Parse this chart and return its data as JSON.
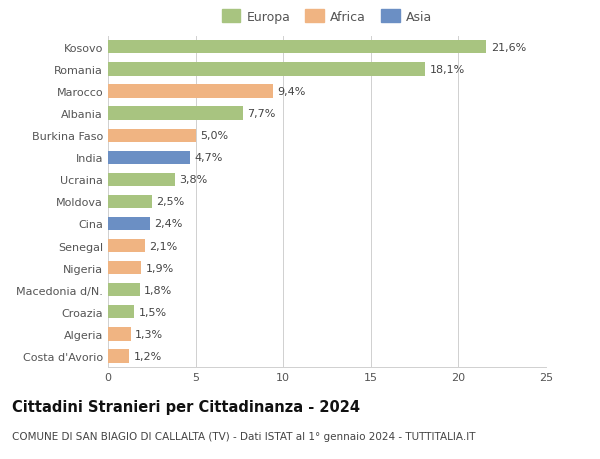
{
  "categories": [
    "Kosovo",
    "Romania",
    "Marocco",
    "Albania",
    "Burkina Faso",
    "India",
    "Ucraina",
    "Moldova",
    "Cina",
    "Senegal",
    "Nigeria",
    "Macedonia d/N.",
    "Croazia",
    "Algeria",
    "Costa d'Avorio"
  ],
  "values": [
    21.6,
    18.1,
    9.4,
    7.7,
    5.0,
    4.7,
    3.8,
    2.5,
    2.4,
    2.1,
    1.9,
    1.8,
    1.5,
    1.3,
    1.2
  ],
  "labels": [
    "21,6%",
    "18,1%",
    "9,4%",
    "7,7%",
    "5,0%",
    "4,7%",
    "3,8%",
    "2,5%",
    "2,4%",
    "2,1%",
    "1,9%",
    "1,8%",
    "1,5%",
    "1,3%",
    "1,2%"
  ],
  "continents": [
    "Europa",
    "Europa",
    "Africa",
    "Europa",
    "Africa",
    "Asia",
    "Europa",
    "Europa",
    "Asia",
    "Africa",
    "Africa",
    "Europa",
    "Europa",
    "Africa",
    "Africa"
  ],
  "colors": {
    "Europa": "#a8c480",
    "Africa": "#f0b482",
    "Asia": "#6b8fc4"
  },
  "xlim": [
    0,
    25
  ],
  "xticks": [
    0,
    5,
    10,
    15,
    20,
    25
  ],
  "title": "Cittadini Stranieri per Cittadinanza - 2024",
  "subtitle": "COMUNE DI SAN BIAGIO DI CALLALTA (TV) - Dati ISTAT al 1° gennaio 2024 - TUTTITALIA.IT",
  "background_color": "#ffffff",
  "grid_color": "#d0d0d0",
  "bar_height": 0.6,
  "label_fontsize": 8,
  "title_fontsize": 10.5,
  "subtitle_fontsize": 7.5,
  "ytick_fontsize": 8,
  "xtick_fontsize": 8,
  "legend_fontsize": 9
}
